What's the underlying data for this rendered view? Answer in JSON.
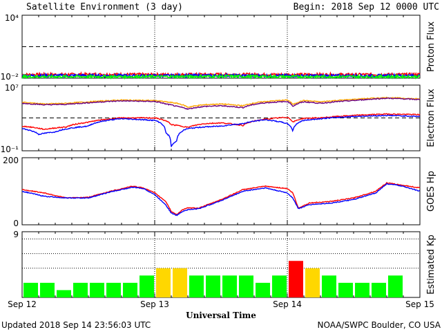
{
  "header": {
    "title": "Satellite Environment (3 day)",
    "begin": "Begin:  2018 Sep 12 0000 UTC"
  },
  "footer": {
    "updated": "Updated 2018 Sep 14 23:56:03 UTC",
    "credit": "NOAA/SWPC Boulder, CO USA"
  },
  "colors": {
    "red": "#ff0000",
    "blue": "#0000ff",
    "green": "#00ff00",
    "orange": "#ffa500",
    "purple": "#6a0080",
    "kp_green": "#00ff00",
    "kp_yellow": "#ffd700",
    "kp_red": "#ff0000"
  },
  "chart_data": [
    {
      "type": "line",
      "ylabel": "Proton Flux",
      "log_scale": true,
      "ylim": [
        0.01,
        10000
      ],
      "yticks": [
        "10⁴",
        "10⁻²"
      ],
      "threshold": 10,
      "series": [
        {
          "color": "red",
          "x": [
            0,
            12,
            24,
            36,
            48,
            60,
            72
          ],
          "y": [
            0.022,
            0.023,
            0.022,
            0.023,
            0.022,
            0.022,
            0.023
          ]
        },
        {
          "color": "blue",
          "x": [
            0,
            12,
            24,
            36,
            48,
            60,
            72
          ],
          "y": [
            0.017,
            0.018,
            0.017,
            0.018,
            0.017,
            0.017,
            0.018
          ]
        },
        {
          "color": "green",
          "x": [
            0,
            12,
            24,
            36,
            48,
            60,
            72
          ],
          "y": [
            0.014,
            0.014,
            0.014,
            0.015,
            0.014,
            0.014,
            0.014
          ]
        }
      ]
    },
    {
      "type": "line",
      "ylabel": "Electron Flux",
      "log_scale": true,
      "ylim": [
        0.1,
        10000000
      ],
      "yticks": [
        "10⁷",
        "10⁻¹"
      ],
      "threshold": 1000,
      "series": [
        {
          "color": "orange",
          "x": [
            0,
            4,
            8,
            12,
            18,
            24,
            26,
            28,
            30,
            33,
            36,
            40,
            44,
            48,
            49,
            51,
            54,
            60,
            66,
            72
          ],
          "y": [
            80000,
            50000,
            60000,
            90000,
            150000,
            130000,
            90000,
            60000,
            20000,
            40000,
            50000,
            30000,
            100000,
            150000,
            40000,
            130000,
            90000,
            180000,
            300000,
            200000
          ]
        },
        {
          "color": "purple",
          "x": [
            0,
            4,
            8,
            12,
            18,
            24,
            26,
            28,
            30,
            33,
            36,
            40,
            44,
            48,
            49,
            51,
            54,
            60,
            66,
            72
          ],
          "y": [
            60000,
            40000,
            45000,
            70000,
            120000,
            100000,
            50000,
            25000,
            12000,
            25000,
            30000,
            18000,
            70000,
            100000,
            25000,
            90000,
            60000,
            130000,
            250000,
            170000
          ]
        },
        {
          "color": "red",
          "x": [
            0,
            4,
            8,
            12,
            18,
            24,
            27,
            30,
            33,
            36,
            40,
            44,
            48,
            49,
            51,
            54,
            60,
            66,
            72
          ],
          "y": [
            100,
            40,
            80,
            300,
            1000,
            1000,
            150,
            70,
            200,
            250,
            120,
            700,
            1200,
            300,
            900,
            1000,
            2000,
            3000,
            2500
          ]
        },
        {
          "color": "blue",
          "x": [
            0,
            3,
            6,
            12,
            18,
            24,
            26,
            27,
            28,
            30,
            33,
            36,
            40,
            44,
            48,
            49,
            51,
            54,
            60,
            66,
            72
          ],
          "y": [
            50,
            10,
            20,
            100,
            800,
            500,
            15,
            0.3,
            1.5,
            50,
            80,
            100,
            200,
            600,
            200,
            20,
            500,
            800,
            1500,
            2000,
            1500
          ]
        }
      ]
    },
    {
      "type": "line",
      "ylabel": "GOES Hp",
      "ylim": [
        0,
        200
      ],
      "yticks": [
        "200",
        "0"
      ],
      "series": [
        {
          "color": "red",
          "x": [
            0,
            4,
            8,
            12,
            16,
            20,
            22,
            24,
            26,
            27,
            28,
            29,
            30,
            32,
            36,
            40,
            44,
            48,
            49,
            50,
            52,
            56,
            60,
            64,
            66,
            68,
            70,
            72
          ],
          "y": [
            105,
            95,
            80,
            82,
            100,
            115,
            110,
            95,
            70,
            40,
            30,
            45,
            50,
            50,
            75,
            105,
            115,
            108,
            95,
            50,
            65,
            70,
            80,
            100,
            125,
            120,
            115,
            110
          ]
        },
        {
          "color": "blue",
          "x": [
            0,
            4,
            8,
            12,
            16,
            20,
            22,
            24,
            26,
            27,
            28,
            29,
            30,
            32,
            36,
            40,
            44,
            48,
            49,
            50,
            52,
            56,
            60,
            64,
            66,
            68,
            70,
            72
          ],
          "y": [
            100,
            85,
            80,
            80,
            98,
            112,
            108,
            90,
            60,
            35,
            28,
            40,
            45,
            48,
            72,
            100,
            110,
            95,
            80,
            48,
            60,
            65,
            75,
            95,
            122,
            118,
            110,
            100
          ]
        }
      ]
    },
    {
      "type": "bar",
      "ylabel": "Estimated Kp",
      "ylim": [
        0,
        9
      ],
      "yticks": [
        "9"
      ],
      "gridlines": [
        4,
        6,
        8
      ],
      "bar_width_hours": 3,
      "values": [
        2,
        2,
        1,
        2,
        2,
        2,
        2,
        3,
        4,
        4,
        3,
        3,
        3,
        3,
        2,
        3,
        5,
        4,
        3,
        2,
        2,
        2,
        3,
        0
      ],
      "colors": [
        "green",
        "green",
        "green",
        "green",
        "green",
        "green",
        "green",
        "green",
        "yellow",
        "yellow",
        "green",
        "green",
        "green",
        "green",
        "green",
        "green",
        "red",
        "yellow",
        "green",
        "green",
        "green",
        "green",
        "green",
        "green"
      ]
    }
  ],
  "xaxis": {
    "label": "Universal Time",
    "ticks": [
      "Sep 12",
      "Sep 13",
      "Sep 14",
      "Sep 15"
    ],
    "tick_hours": [
      0,
      24,
      48,
      72
    ]
  }
}
